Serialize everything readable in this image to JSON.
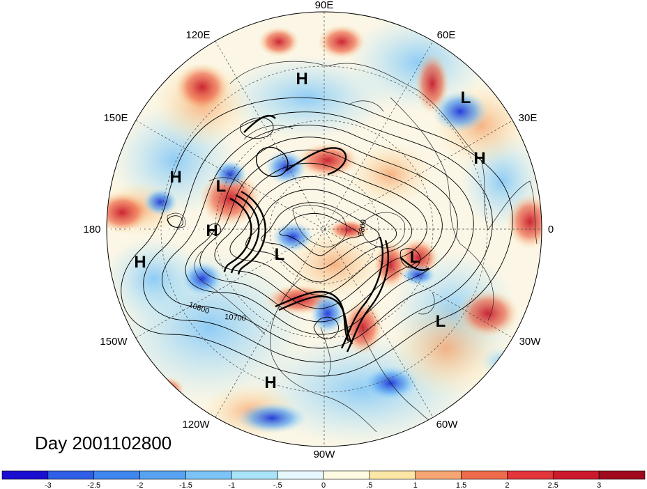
{
  "map": {
    "day_label": "Day 2001102800",
    "longitude_labels": [
      "90E",
      "60E",
      "30E",
      "0",
      "30W",
      "60W",
      "90W",
      "120W",
      "150W",
      "180",
      "150E",
      "120E"
    ],
    "pressure_labels": [
      {
        "text": "H",
        "kind": "high"
      },
      {
        "text": "L",
        "kind": "low"
      },
      {
        "text": "H",
        "kind": "high"
      },
      {
        "text": "H",
        "kind": "high"
      },
      {
        "text": "L",
        "kind": "low"
      },
      {
        "text": "H",
        "kind": "high"
      },
      {
        "text": "H",
        "kind": "high"
      },
      {
        "text": "L",
        "kind": "low"
      },
      {
        "text": "L",
        "kind": "low"
      },
      {
        "text": "L",
        "kind": "low"
      },
      {
        "text": "H",
        "kind": "high"
      }
    ],
    "contour_labels": [
      "10800",
      "10700",
      "0800"
    ]
  },
  "colorbar": {
    "ticks": [
      "-3",
      "-2.5",
      "-2",
      "-1.5",
      "-1",
      "-.5",
      "0",
      ".5",
      "1",
      "1.5",
      "2",
      "2.5",
      "3"
    ],
    "colors": [
      "#1a0fd0",
      "#2f5fe6",
      "#3f86ee",
      "#57a3f2",
      "#7cc4f7",
      "#a9e4fb",
      "#e6f8fd",
      "#fffbe2",
      "#fde7a6",
      "#f5a673",
      "#ee6c4c",
      "#e2363a",
      "#cc1a2c",
      "#a00a1e"
    ]
  },
  "colors": {
    "positive": "#e2363a",
    "negative": "#2f5fe6",
    "background": "#ffffff"
  }
}
